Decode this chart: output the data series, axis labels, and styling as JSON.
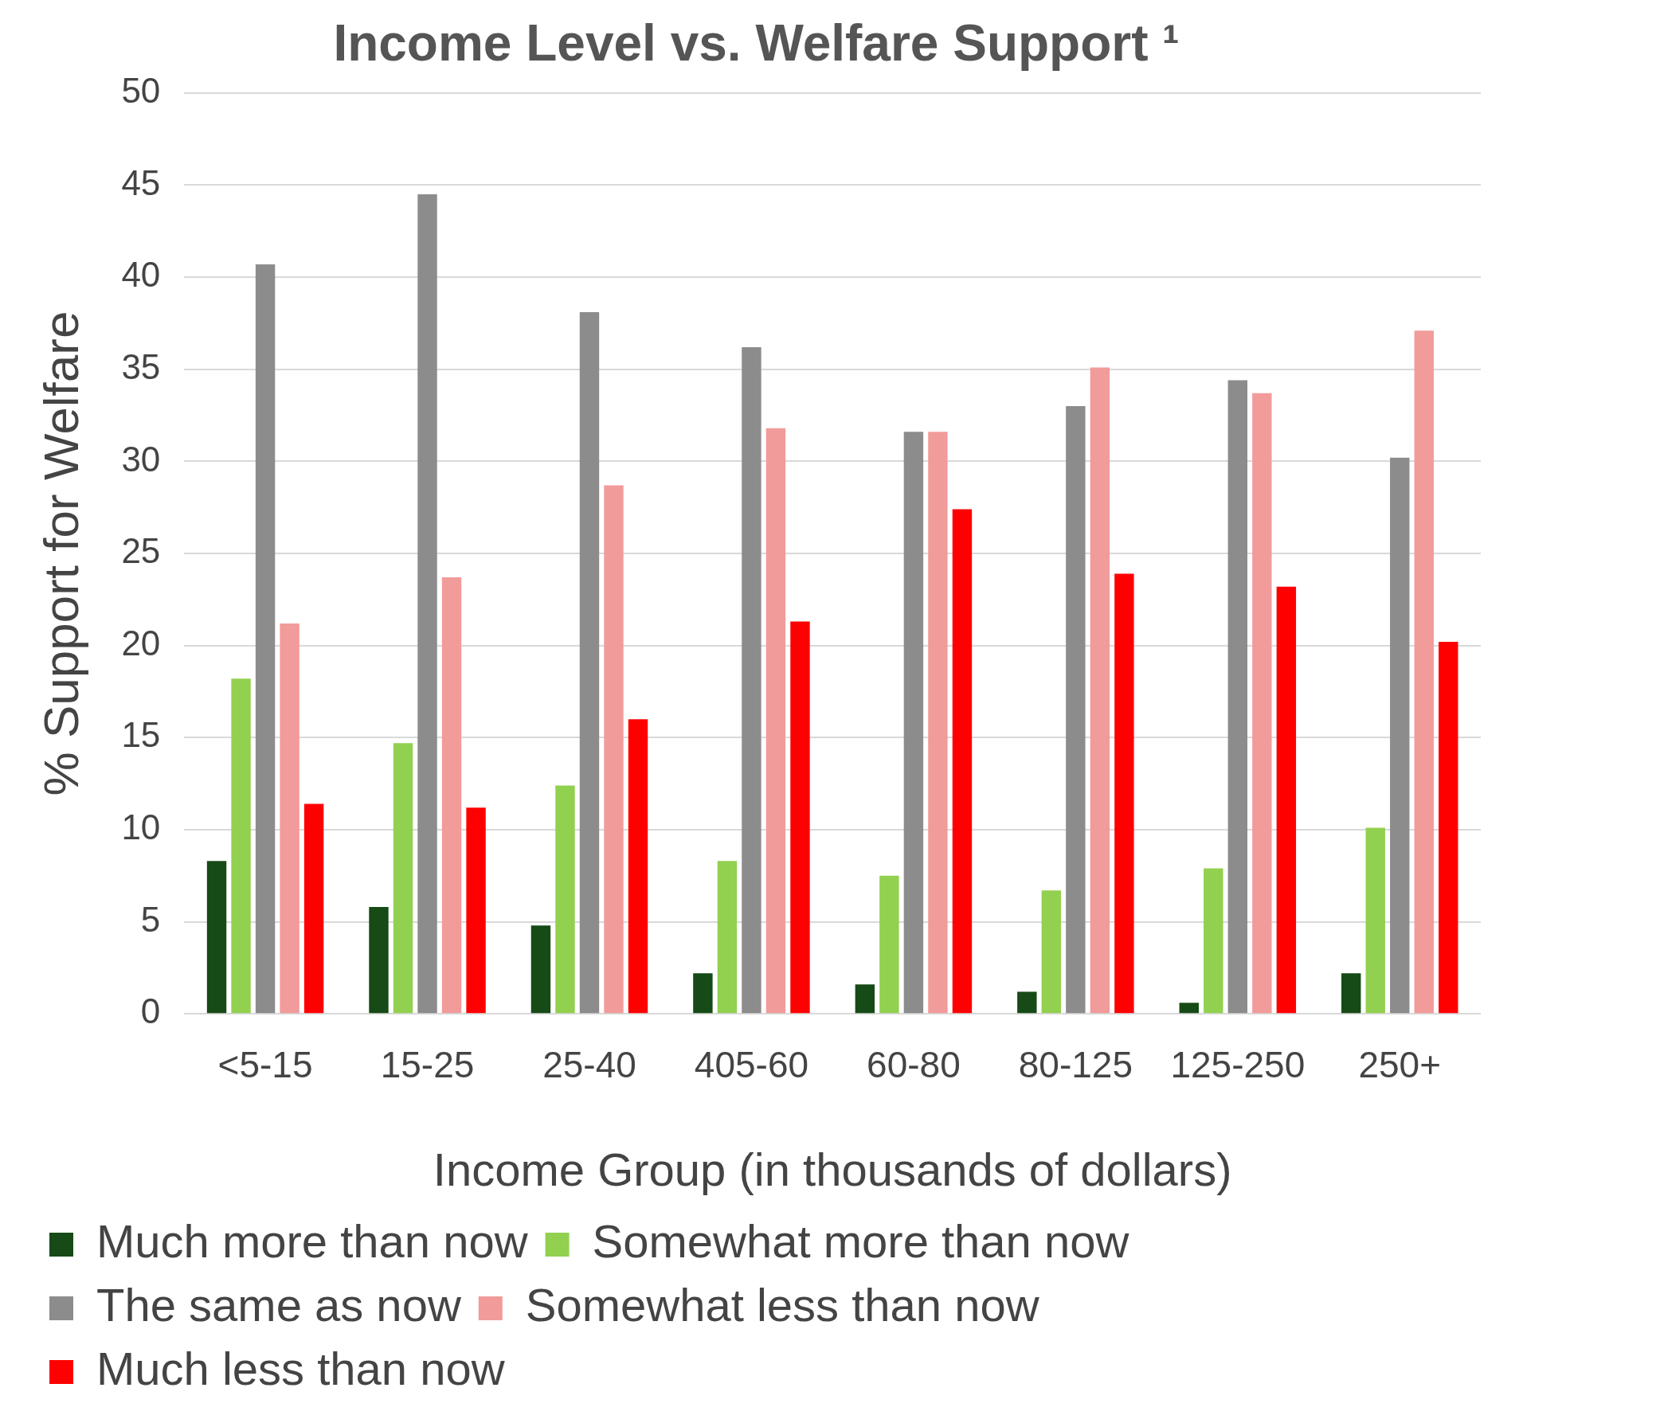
{
  "chart_data": {
    "type": "bar",
    "title": "Income Level vs. Welfare Support ¹",
    "xlabel": "Income Group (in thousands of dollars)",
    "ylabel": "% Support for Welfare",
    "categories": [
      "<5-15",
      "15-25",
      "25-40",
      "405-60",
      "60-80",
      "80-125",
      "125-250",
      "250+"
    ],
    "series": [
      {
        "name": "Much more than now",
        "color": "#164a16",
        "values": [
          8.3,
          5.8,
          4.8,
          2.2,
          1.6,
          1.2,
          0.6,
          2.2
        ]
      },
      {
        "name": "Somewhat more than now",
        "color": "#92d050",
        "values": [
          18.2,
          14.7,
          12.4,
          8.3,
          7.5,
          6.7,
          7.9,
          10.1
        ]
      },
      {
        "name": "The same as now",
        "color": "#8c8c8c",
        "values": [
          40.7,
          44.5,
          38.1,
          36.2,
          31.6,
          33.0,
          34.4,
          30.2
        ]
      },
      {
        "name": "Somewhat less than now",
        "color": "#f29b9b",
        "values": [
          21.2,
          23.7,
          28.7,
          31.8,
          31.6,
          35.1,
          33.7,
          37.1
        ]
      },
      {
        "name": "Much less than now",
        "color": "#ff0000",
        "values": [
          11.4,
          11.2,
          16.0,
          21.3,
          27.4,
          23.9,
          23.2,
          20.2
        ]
      }
    ],
    "ylim": [
      0,
      50
    ],
    "yticks": [
      0,
      5,
      10,
      15,
      20,
      25,
      30,
      35,
      40,
      45,
      50
    ],
    "grid": "y",
    "legend": "bottom"
  }
}
